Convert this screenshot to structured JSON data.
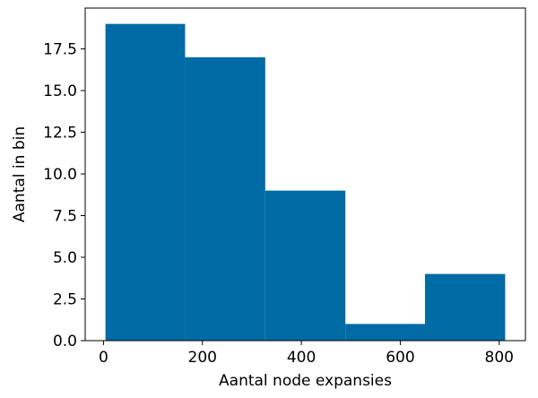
{
  "chart_data": {
    "type": "bar",
    "title": "",
    "xlabel": "Aantal node expansies",
    "ylabel": "Aantal in bin",
    "bins": [
      {
        "x0": 4,
        "x1": 165,
        "count": 19
      },
      {
        "x0": 165,
        "x1": 327,
        "count": 17
      },
      {
        "x0": 327,
        "x1": 489,
        "count": 9
      },
      {
        "x0": 489,
        "x1": 650,
        "count": 1
      },
      {
        "x0": 650,
        "x1": 812,
        "count": 4
      }
    ],
    "xlim": [
      -37,
      853
    ],
    "ylim": [
      0,
      19.95
    ],
    "xticks": [
      0,
      200,
      400,
      600,
      800
    ],
    "yticks": [
      0.0,
      2.5,
      5.0,
      7.5,
      10.0,
      12.5,
      15.0,
      17.5
    ],
    "ytick_labels": [
      "0.0",
      "2.5",
      "5.0",
      "7.5",
      "10.0",
      "12.5",
      "15.0",
      "17.5"
    ],
    "grid": false,
    "bar_color": "#006ba4"
  }
}
